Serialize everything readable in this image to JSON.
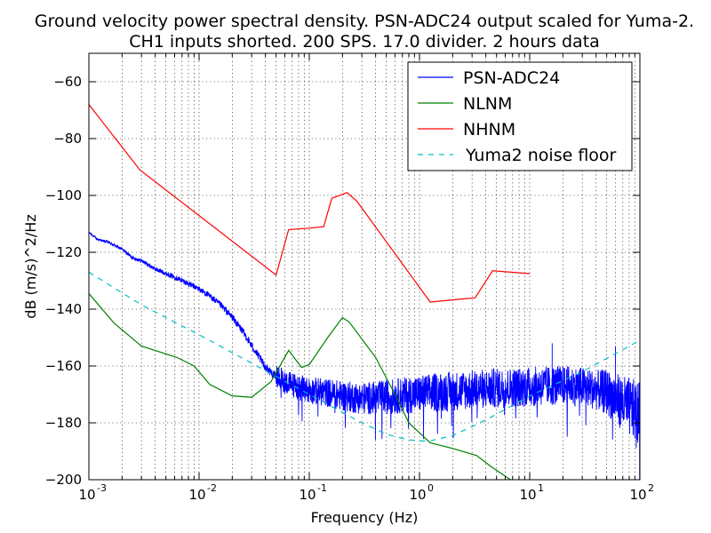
{
  "chart_data": {
    "type": "line",
    "title_line1": "Ground velocity power spectral density. PSN-ADC24 output scaled for Yuma-2.",
    "title_line2": "CH1 inputs shorted. 200 SPS. 17.0 divider. 2 hours data",
    "xlabel": "Frequency (Hz)",
    "ylabel": "dB (m/s)^2/Hz",
    "x_scale": "log",
    "xlim": [
      0.001,
      100
    ],
    "ylim": [
      -200,
      -50
    ],
    "x_ticks": [
      {
        "value": 0.001,
        "base": "10",
        "exp": "-3"
      },
      {
        "value": 0.01,
        "base": "10",
        "exp": "-2"
      },
      {
        "value": 0.1,
        "base": "10",
        "exp": "-1"
      },
      {
        "value": 1,
        "base": "10",
        "exp": "0"
      },
      {
        "value": 10,
        "base": "10",
        "exp": "1"
      },
      {
        "value": 100,
        "base": "10",
        "exp": "2"
      }
    ],
    "y_ticks": [
      {
        "value": -60,
        "label": "−60"
      },
      {
        "value": -80,
        "label": "−80"
      },
      {
        "value": -100,
        "label": "−100"
      },
      {
        "value": -120,
        "label": "−120"
      },
      {
        "value": -140,
        "label": "−140"
      },
      {
        "value": -160,
        "label": "−160"
      },
      {
        "value": -180,
        "label": "−180"
      },
      {
        "value": -200,
        "label": "−200"
      }
    ],
    "grid": true,
    "legend_position": "top-right",
    "series": [
      {
        "name": "PSN-ADC24",
        "color": "#0000ff",
        "style": "solid",
        "points": [
          [
            0.001,
            -113
          ],
          [
            0.0012,
            -115.5
          ],
          [
            0.0015,
            -116.5
          ],
          [
            0.002,
            -119
          ],
          [
            0.0025,
            -122
          ],
          [
            0.003,
            -123
          ],
          [
            0.004,
            -126
          ],
          [
            0.005,
            -127.5
          ],
          [
            0.007,
            -130
          ],
          [
            0.01,
            -133
          ],
          [
            0.013,
            -136
          ],
          [
            0.016,
            -139
          ],
          [
            0.02,
            -143
          ],
          [
            0.025,
            -148
          ],
          [
            0.03,
            -153
          ],
          [
            0.035,
            -157
          ],
          [
            0.04,
            -160.5
          ],
          [
            0.05,
            -164
          ],
          [
            0.06,
            -166
          ],
          [
            0.08,
            -168
          ],
          [
            0.1,
            -169
          ],
          [
            0.15,
            -170
          ],
          [
            0.2,
            -171
          ],
          [
            0.3,
            -172
          ],
          [
            0.5,
            -171.5
          ],
          [
            1,
            -170.5
          ],
          [
            2,
            -169.5
          ],
          [
            5,
            -168.5
          ],
          [
            10,
            -168
          ],
          [
            20,
            -167.5
          ],
          [
            30,
            -168
          ],
          [
            50,
            -170
          ],
          [
            70,
            -174
          ],
          [
            100,
            -178
          ]
        ],
        "noise_fmin": 0.05,
        "noise_amplitude_db": 7
      },
      {
        "name": "NLNM",
        "color": "#008000",
        "style": "solid",
        "points": [
          [
            0.001,
            -134.5
          ],
          [
            0.0017,
            -145
          ],
          [
            0.003,
            -153
          ],
          [
            0.0063,
            -157
          ],
          [
            0.009,
            -160
          ],
          [
            0.0125,
            -166.5
          ],
          [
            0.02,
            -170.5
          ],
          [
            0.03,
            -171
          ],
          [
            0.045,
            -165.5
          ],
          [
            0.065,
            -154.5
          ],
          [
            0.085,
            -160.5
          ],
          [
            0.1,
            -159.5
          ],
          [
            0.15,
            -149.5
          ],
          [
            0.2,
            -143
          ],
          [
            0.23,
            -144.5
          ],
          [
            0.4,
            -157
          ],
          [
            0.6,
            -170
          ],
          [
            0.8,
            -180
          ],
          [
            1.25,
            -187
          ],
          [
            2,
            -189
          ],
          [
            3.3,
            -191.5
          ],
          [
            4.5,
            -195.5
          ],
          [
            7,
            -200.5
          ]
        ]
      },
      {
        "name": "NHNM",
        "color": "#ff0000",
        "style": "solid",
        "points": [
          [
            0.001,
            -68
          ],
          [
            0.0029,
            -91
          ],
          [
            0.05,
            -128
          ],
          [
            0.065,
            -112
          ],
          [
            0.1,
            -111.5
          ],
          [
            0.135,
            -111
          ],
          [
            0.16,
            -101
          ],
          [
            0.22,
            -99
          ],
          [
            0.27,
            -102
          ],
          [
            1.25,
            -137.5
          ],
          [
            3.2,
            -136
          ],
          [
            4.6,
            -126.5
          ],
          [
            10,
            -127.5
          ]
        ]
      },
      {
        "name": "Yuma2 noise floor",
        "color": "#00bfbf",
        "style": "dashed",
        "points": [
          [
            0.001,
            -127
          ],
          [
            0.003,
            -138.5
          ],
          [
            0.01,
            -149
          ],
          [
            0.03,
            -159
          ],
          [
            0.1,
            -170
          ],
          [
            0.3,
            -180
          ],
          [
            0.5,
            -184
          ],
          [
            0.8,
            -186
          ],
          [
            1.2,
            -186.5
          ],
          [
            2,
            -184.5
          ],
          [
            4,
            -179
          ],
          [
            10,
            -170.5
          ],
          [
            30,
            -162
          ],
          [
            100,
            -151
          ]
        ]
      }
    ],
    "spikes": [
      {
        "x": 16,
        "top": -152
      },
      {
        "x": 60,
        "top": -153
      }
    ]
  }
}
